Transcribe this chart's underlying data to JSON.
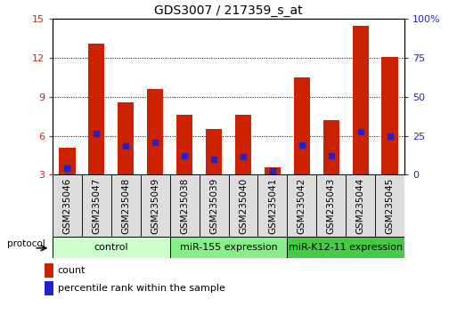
{
  "title": "GDS3007 / 217359_s_at",
  "samples": [
    "GSM235046",
    "GSM235047",
    "GSM235048",
    "GSM235049",
    "GSM235038",
    "GSM235039",
    "GSM235040",
    "GSM235041",
    "GSM235042",
    "GSM235043",
    "GSM235044",
    "GSM235045"
  ],
  "count_values": [
    5.1,
    13.1,
    8.6,
    9.6,
    7.6,
    6.5,
    7.6,
    3.6,
    10.5,
    7.2,
    14.5,
    12.1
  ],
  "percentile_values": [
    3.5,
    6.2,
    5.2,
    5.5,
    4.5,
    4.2,
    4.4,
    3.3,
    5.3,
    4.5,
    6.3,
    6.0
  ],
  "ylim_left": [
    3,
    15
  ],
  "ylim_right": [
    0,
    100
  ],
  "yticks_left": [
    3,
    6,
    9,
    12,
    15
  ],
  "yticks_right": [
    0,
    25,
    50,
    75,
    100
  ],
  "bar_color": "#cc2200",
  "dot_color": "#2222cc",
  "groups": [
    {
      "label": "control",
      "start": 0,
      "end": 3,
      "color": "#ccffcc"
    },
    {
      "label": "miR-155 expression",
      "start": 4,
      "end": 7,
      "color": "#88ee88"
    },
    {
      "label": "miR-K12-11 expression",
      "start": 8,
      "end": 11,
      "color": "#44cc44"
    }
  ],
  "title_fontsize": 10,
  "tick_fontsize": 8,
  "label_fontsize": 7.5,
  "group_fontsize": 8
}
